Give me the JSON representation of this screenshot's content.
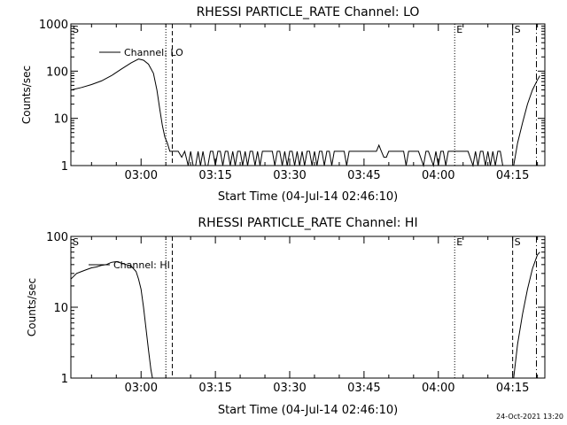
{
  "footer_timestamp": "24-Oct-2021 13:20",
  "chart_data": [
    {
      "type": "line",
      "title": "RHESSI PARTICLE_RATE Channel: LO",
      "xlabel": "Start Time (04-Jul-14 02:46:10)",
      "ylabel": "Counts/sec",
      "yscale": "log",
      "ylim": [
        1,
        1000
      ],
      "ytick_values": [
        1,
        10,
        100,
        1000
      ],
      "ytick_labels": [
        "1",
        "10",
        "100",
        "1000"
      ],
      "xlim_minutes": [
        -14.17,
        81.5
      ],
      "xtick_minutes": [
        0,
        15,
        30,
        45,
        60,
        75
      ],
      "xtick_labels": [
        "03:00",
        "03:15",
        "03:30",
        "03:45",
        "04:00",
        "04:15"
      ],
      "legend": "Channel: LO",
      "markers": [
        {
          "label": "S",
          "minute": -14.17,
          "style": "none"
        },
        {
          "label": "",
          "minute": 5.0,
          "style": "dotted"
        },
        {
          "label": "",
          "minute": 6.3,
          "style": "dashed"
        },
        {
          "label": "E",
          "minute": 63.3,
          "style": "dotted"
        },
        {
          "label": "S",
          "minute": 75.0,
          "style": "dashed"
        },
        {
          "label": "",
          "minute": 79.8,
          "style": "dashdot"
        }
      ],
      "series": [
        {
          "name": "LO",
          "segments": [
            [
              [
                -14.17,
                40
              ],
              [
                -12,
                45
              ],
              [
                -10,
                52
              ],
              [
                -8,
                62
              ],
              [
                -6,
                80
              ],
              [
                -4,
                110
              ],
              [
                -2,
                150
              ],
              [
                -0.5,
                180
              ],
              [
                0.5,
                170
              ],
              [
                1.5,
                140
              ],
              [
                2.5,
                90
              ],
              [
                3.2,
                40
              ],
              [
                3.8,
                15
              ],
              [
                4.3,
                7
              ],
              [
                4.8,
                4
              ],
              [
                5.3,
                3
              ],
              [
                5.8,
                2
              ],
              [
                6.5,
                2
              ],
              [
                7.5,
                2
              ],
              [
                8.2,
                1.5
              ],
              [
                8.8,
                2
              ],
              [
                9.5,
                1
              ],
              [
                10,
                2
              ],
              [
                10.5,
                1
              ],
              [
                11,
                1
              ],
              [
                11.5,
                2
              ],
              [
                12,
                1
              ],
              [
                12.5,
                2
              ],
              [
                13,
                1
              ],
              [
                13.5,
                1
              ],
              [
                14,
                2
              ],
              [
                14.5,
                2
              ],
              [
                15,
                1
              ],
              [
                15.5,
                2
              ],
              [
                16,
                2
              ],
              [
                16.5,
                1
              ],
              [
                17,
                2
              ],
              [
                17.5,
                2
              ],
              [
                18,
                1
              ],
              [
                18.5,
                2
              ],
              [
                19,
                1
              ],
              [
                19.5,
                2
              ],
              [
                20,
                2
              ],
              [
                20.5,
                1
              ],
              [
                21,
                2
              ],
              [
                21.5,
                1
              ],
              [
                22,
                2
              ],
              [
                22.5,
                2
              ],
              [
                23,
                1
              ],
              [
                23.5,
                2
              ],
              [
                24,
                1
              ],
              [
                24.5,
                2
              ],
              [
                25,
                2
              ],
              [
                25.5,
                2
              ],
              [
                26,
                2
              ],
              [
                26.5,
                2
              ],
              [
                27,
                1
              ],
              [
                27.5,
                2
              ],
              [
                28,
                2
              ],
              [
                28.5,
                1
              ],
              [
                29,
                2
              ],
              [
                29.5,
                1
              ],
              [
                30,
                2
              ],
              [
                30.5,
                2
              ],
              [
                31,
                1
              ],
              [
                31.5,
                2
              ],
              [
                32,
                1
              ],
              [
                32.5,
                2
              ],
              [
                33,
                1
              ],
              [
                33.5,
                2
              ],
              [
                34,
                2
              ],
              [
                34.5,
                1
              ],
              [
                35,
                2
              ],
              [
                35.5,
                1
              ],
              [
                36,
                2
              ],
              [
                36.5,
                2
              ],
              [
                37,
                1
              ],
              [
                37.5,
                2
              ],
              [
                38,
                2
              ],
              [
                38.5,
                1
              ],
              [
                39,
                2
              ],
              [
                39.5,
                2
              ],
              [
                40,
                2
              ],
              [
                40.5,
                2
              ],
              [
                41,
                2
              ],
              [
                41.5,
                1
              ],
              [
                42,
                2
              ],
              [
                43,
                2
              ],
              [
                44,
                2
              ],
              [
                45,
                2
              ],
              [
                46,
                2
              ],
              [
                47,
                2
              ],
              [
                47.5,
                2
              ],
              [
                48,
                2.7
              ],
              [
                48.5,
                2
              ],
              [
                49,
                1.5
              ],
              [
                49.5,
                1.5
              ],
              [
                50,
                2
              ],
              [
                51,
                2
              ],
              [
                52,
                2
              ],
              [
                52.5,
                2
              ],
              [
                53,
                2
              ],
              [
                53.5,
                1
              ],
              [
                54,
                2
              ],
              [
                55,
                2
              ],
              [
                56,
                2
              ],
              [
                57,
                1
              ],
              [
                57.5,
                2
              ],
              [
                58,
                2
              ],
              [
                59,
                1
              ],
              [
                59.5,
                2
              ],
              [
                60,
                1
              ],
              [
                60.5,
                2
              ],
              [
                61,
                2
              ],
              [
                61.5,
                1
              ],
              [
                62,
                2
              ],
              [
                63,
                2
              ],
              [
                64,
                2
              ],
              [
                65,
                2
              ],
              [
                66,
                2
              ],
              [
                67,
                1
              ],
              [
                67.5,
                2
              ],
              [
                68,
                1
              ],
              [
                68.5,
                2
              ],
              [
                69,
                2
              ],
              [
                69.5,
                1
              ],
              [
                70,
                2
              ],
              [
                70.5,
                1
              ],
              [
                71,
                2
              ],
              [
                71.5,
                1
              ],
              [
                72,
                2
              ],
              [
                72.5,
                2
              ],
              [
                73,
                1
              ],
              [
                73.5,
                1
              ],
              [
                74,
                1
              ]
            ],
            [
              [
                75.2,
                1
              ],
              [
                76,
                3
              ],
              [
                77,
                8
              ],
              [
                78,
                20
              ],
              [
                79,
                40
              ],
              [
                80,
                65
              ],
              [
                80.5,
                80
              ]
            ]
          ]
        }
      ]
    },
    {
      "type": "line",
      "title": "RHESSI PARTICLE_RATE Channel: HI",
      "xlabel": "Start Time (04-Jul-14 02:46:10)",
      "ylabel": "Counts/sec",
      "yscale": "log",
      "ylim": [
        1,
        100
      ],
      "ytick_values": [
        1,
        10,
        100
      ],
      "ytick_labels": [
        "1",
        "10",
        "100"
      ],
      "xlim_minutes": [
        -14.17,
        81.5
      ],
      "xtick_minutes": [
        0,
        15,
        30,
        45,
        60,
        75
      ],
      "xtick_labels": [
        "03:00",
        "03:15",
        "03:30",
        "03:45",
        "04:00",
        "04:15"
      ],
      "legend": "Channel: HI",
      "markers": [
        {
          "label": "S",
          "minute": -14.17,
          "style": "none"
        },
        {
          "label": "",
          "minute": 5.0,
          "style": "dotted"
        },
        {
          "label": "",
          "minute": 6.3,
          "style": "dashed"
        },
        {
          "label": "E",
          "minute": 63.3,
          "style": "dotted"
        },
        {
          "label": "S",
          "minute": 75.0,
          "style": "dashed"
        },
        {
          "label": "",
          "minute": 79.8,
          "style": "dashdot"
        }
      ],
      "series": [
        {
          "name": "HI",
          "segments": [
            [
              [
                -14.17,
                25
              ],
              [
                -13,
                30
              ],
              [
                -12,
                32
              ],
              [
                -11,
                34
              ],
              [
                -10,
                36
              ],
              [
                -9,
                37
              ],
              [
                -8,
                39
              ],
              [
                -7,
                40
              ],
              [
                -6,
                43
              ],
              [
                -5,
                44
              ],
              [
                -4,
                42
              ],
              [
                -3,
                40
              ],
              [
                -2,
                38
              ],
              [
                -1,
                32
              ],
              [
                -0.5,
                25
              ],
              [
                0,
                18
              ],
              [
                0.5,
                10
              ],
              [
                1,
                5
              ],
              [
                1.5,
                2.5
              ],
              [
                2,
                1.3
              ],
              [
                2.3,
                1
              ]
            ],
            [
              [
                75.2,
                1
              ],
              [
                76,
                3
              ],
              [
                77,
                8
              ],
              [
                78,
                18
              ],
              [
                79,
                35
              ],
              [
                80,
                55
              ],
              [
                80.5,
                60
              ]
            ]
          ]
        }
      ]
    }
  ]
}
